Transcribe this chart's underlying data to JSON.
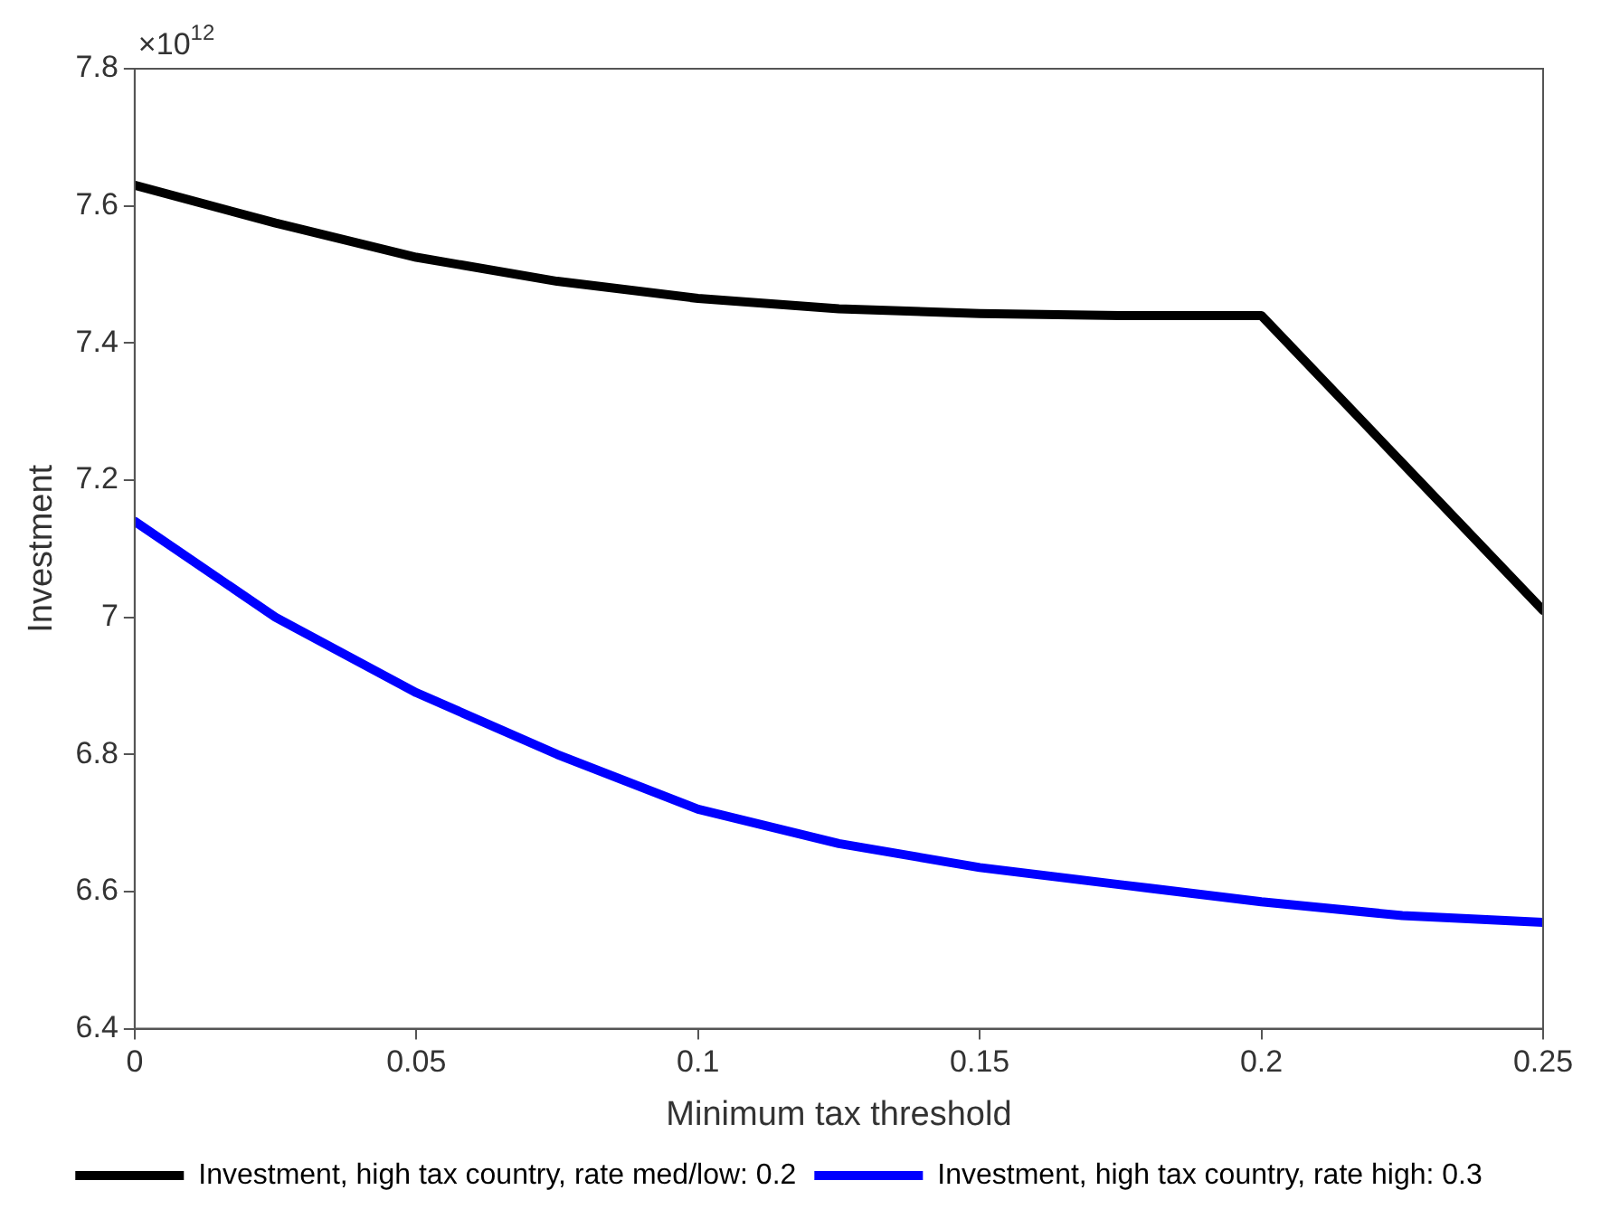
{
  "chart_data": {
    "type": "line",
    "xlabel": "Minimum tax threshold",
    "ylabel": "Investment",
    "annotations": [
      "×10$^{12}$"
    ],
    "x": [
      0,
      0.025,
      0.05,
      0.075,
      0.1,
      0.125,
      0.15,
      0.175,
      0.2,
      0.225,
      0.25
    ],
    "xlim": [
      0,
      0.25
    ],
    "xticks": [
      0,
      0.05,
      0.1,
      0.15,
      0.2,
      0.25
    ],
    "ylim": [
      6.4,
      7.8
    ],
    "yticks": [
      6.4,
      6.6,
      6.8,
      7,
      7.2,
      7.4,
      7.6,
      7.8
    ],
    "legend": "bottom",
    "marker": "none",
    "line_style": "solid",
    "series": [
      {
        "name": "Investment, high tax country, rate med/low: 0.2",
        "color": "#000000",
        "values": [
          7.63,
          7.575,
          7.525,
          7.49,
          7.465,
          7.45,
          7.443,
          7.44,
          7.44,
          7.225,
          7.01
        ]
      },
      {
        "name": "Investment, high tax country, rate high: 0.3",
        "color": "#0000ff",
        "values": [
          7.14,
          7.0,
          6.89,
          6.8,
          6.72,
          6.67,
          6.635,
          6.61,
          6.585,
          6.565,
          6.555
        ]
      }
    ]
  }
}
